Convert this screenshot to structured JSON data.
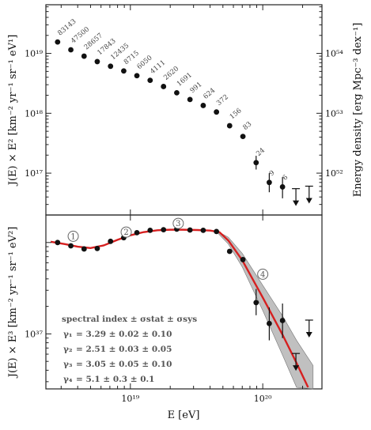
{
  "chart_data": [
    {
      "type": "scatter",
      "panel": "upper",
      "ylabel": "J(E) × E² [km⁻² yr⁻¹ sr⁻¹ eV¹]",
      "ylabel_right": "Energy density [erg Mpc⁻³ dex⁻¹]",
      "x_scale": "log",
      "y_scale": "log",
      "xlim": [
        2.3e+18,
        2.8e+20
      ],
      "ylim": [
        2e+16,
        6.5e+19
      ],
      "y_ticks": [
        {
          "value": 1e+19,
          "label": "10¹⁹"
        },
        {
          "value": 1e+18,
          "label": "10¹⁸"
        },
        {
          "value": 1e+17,
          "label": "10¹⁷"
        }
      ],
      "right_ticks": [
        {
          "value": 1e+54,
          "label": "10⁵⁴"
        },
        {
          "value": 1e+53,
          "label": "10⁵³"
        },
        {
          "value": 1e+52,
          "label": "10⁵²"
        }
      ],
      "right_scale": {
        "at_y": 1e+19,
        "value": 1e+54
      },
      "points": [
        {
          "x": 2.82e+18,
          "y": 1.55e+19,
          "count": "83143"
        },
        {
          "x": 3.55e+18,
          "y": 1.15e+19,
          "count": "47500"
        },
        {
          "x": 4.47e+18,
          "y": 9e+18,
          "count": "28657"
        },
        {
          "x": 5.62e+18,
          "y": 7.3e+18,
          "count": "17843"
        },
        {
          "x": 7.08e+18,
          "y": 6.1e+18,
          "count": "12435"
        },
        {
          "x": 8.91e+18,
          "y": 5.1e+18,
          "count": "8715"
        },
        {
          "x": 1.12e+19,
          "y": 4.25e+18,
          "count": "6050"
        },
        {
          "x": 1.41e+19,
          "y": 3.55e+18,
          "count": "4111"
        },
        {
          "x": 1.78e+19,
          "y": 2.8e+18,
          "count": "2620"
        },
        {
          "x": 2.24e+19,
          "y": 2.2e+18,
          "count": "1691"
        },
        {
          "x": 2.82e+19,
          "y": 1.7e+18,
          "count": "991"
        },
        {
          "x": 3.55e+19,
          "y": 1.35e+18,
          "count": "624"
        },
        {
          "x": 4.47e+19,
          "y": 1.05e+18,
          "count": "372"
        },
        {
          "x": 5.62e+19,
          "y": 6.2e+17,
          "count": "156"
        },
        {
          "x": 7.08e+19,
          "y": 4.1e+17,
          "count": "83"
        },
        {
          "x": 8.91e+19,
          "y": 1.5e+17,
          "count": "24",
          "err": [
            1.15e+17,
            1.95e+17
          ]
        },
        {
          "x": 1.12e+20,
          "y": 7e+16,
          "count": "9",
          "err": [
            4.8e+16,
            1e+17
          ]
        },
        {
          "x": 1.41e+20,
          "y": 5.9e+16,
          "count": "6",
          "err": [
            3.8e+16,
            8.6e+16
          ]
        }
      ],
      "upper_limits": [
        {
          "x": 1.78e+20,
          "y": 3e+16
        },
        {
          "x": 2.24e+20,
          "y": 3.3e+16
        }
      ]
    },
    {
      "type": "scatter",
      "panel": "lower",
      "xlabel": "E [eV]",
      "ylabel": "J(E) × E³ [km⁻² yr⁻¹ sr⁻¹ eV²]",
      "x_scale": "log",
      "y_scale": "log",
      "xlim": [
        2.3e+18,
        2.8e+20
      ],
      "ylim": [
        2.5e+36,
        2e+38
      ],
      "x_ticks": [
        {
          "value": 1e+19,
          "label": "10¹⁹"
        },
        {
          "value": 1e+20,
          "label": "10²⁰"
        }
      ],
      "y_ticks": [
        {
          "value": 1e+37,
          "label": "10³⁷"
        }
      ],
      "points": [
        {
          "x": 2.82e+18,
          "y": 1e+38
        },
        {
          "x": 3.55e+18,
          "y": 9.2e+37
        },
        {
          "x": 4.47e+18,
          "y": 8.5e+37
        },
        {
          "x": 5.62e+18,
          "y": 8.6e+37
        },
        {
          "x": 7.08e+18,
          "y": 1.03e+38
        },
        {
          "x": 8.91e+18,
          "y": 1.13e+38
        },
        {
          "x": 1.12e+19,
          "y": 1.28e+38
        },
        {
          "x": 1.41e+19,
          "y": 1.36e+38
        },
        {
          "x": 1.78e+19,
          "y": 1.38e+38
        },
        {
          "x": 2.24e+19,
          "y": 1.4e+38
        },
        {
          "x": 2.82e+19,
          "y": 1.37e+38
        },
        {
          "x": 3.55e+19,
          "y": 1.36e+38
        },
        {
          "x": 4.47e+19,
          "y": 1.32e+38
        },
        {
          "x": 5.62e+19,
          "y": 8e+37
        },
        {
          "x": 7.08e+19,
          "y": 6.5e+37
        },
        {
          "x": 8.91e+19,
          "y": 2.2e+37,
          "err": [
            1.6e+37,
            3.1e+37
          ]
        },
        {
          "x": 1.12e+20,
          "y": 1.3e+37,
          "err": [
            8.5e+36,
            1.95e+37
          ]
        },
        {
          "x": 1.41e+20,
          "y": 1.4e+37,
          "err": [
            9e+36,
            2.15e+37
          ]
        }
      ],
      "upper_limits": [
        {
          "x": 1.78e+20,
          "y": 4.1e+36
        },
        {
          "x": 2.24e+20,
          "y": 9.5e+36
        }
      ],
      "fit_curve": [
        {
          "x": 2.5e+18,
          "y": 1.02e+38
        },
        {
          "x": 3.2e+18,
          "y": 9.6e+37
        },
        {
          "x": 4e+18,
          "y": 9e+37
        },
        {
          "x": 5e+18,
          "y": 8.7e+37
        },
        {
          "x": 6.3e+18,
          "y": 9.3e+37
        },
        {
          "x": 8e+18,
          "y": 1.07e+38
        },
        {
          "x": 1e+19,
          "y": 1.2e+38
        },
        {
          "x": 1.26e+19,
          "y": 1.3e+38
        },
        {
          "x": 1.6e+19,
          "y": 1.36e+38
        },
        {
          "x": 2e+19,
          "y": 1.38e+38
        },
        {
          "x": 2.5e+19,
          "y": 1.38e+38
        },
        {
          "x": 3.2e+19,
          "y": 1.37e+38
        },
        {
          "x": 4e+19,
          "y": 1.35e+38
        },
        {
          "x": 4.7e+19,
          "y": 1.3e+38
        },
        {
          "x": 5.5e+19,
          "y": 1.05e+38
        },
        {
          "x": 7e+19,
          "y": 6.4e+37
        },
        {
          "x": 1e+20,
          "y": 2.5e+37
        },
        {
          "x": 1.4e+20,
          "y": 1e+37
        },
        {
          "x": 1.8e+20,
          "y": 4.8e+36
        },
        {
          "x": 2.2e+20,
          "y": 2.6e+36
        }
      ],
      "fit_color": "#d62020",
      "band_color": "#8c8c8c",
      "band": [
        {
          "x": 4.5e+19,
          "lo": 1.3e+38,
          "hi": 1.34e+38
        },
        {
          "x": 5.5e+19,
          "lo": 9.6e+37,
          "hi": 1.14e+38
        },
        {
          "x": 7e+19,
          "lo": 5.4e+37,
          "hi": 7.6e+37
        },
        {
          "x": 1e+20,
          "lo": 1.8e+37,
          "hi": 3.4e+37
        },
        {
          "x": 1.4e+20,
          "lo": 6e+36,
          "hi": 1.6e+37
        },
        {
          "x": 1.8e+20,
          "lo": 2.6e+36,
          "hi": 8.5e+36
        },
        {
          "x": 2.4e+20,
          "lo": 2.5e+36,
          "hi": 4.5e+36
        }
      ],
      "markers": [
        {
          "label": "1",
          "x": 3.7e+18,
          "y": 1.17e+38
        },
        {
          "label": "2",
          "x": 9.3e+18,
          "y": 1.3e+38
        },
        {
          "label": "3",
          "x": 2.3e+19,
          "y": 1.62e+38
        },
        {
          "label": "4",
          "x": 1e+20,
          "y": 4.5e+37
        }
      ],
      "legend": {
        "title": "spectral index ± σstat ± σsys",
        "entries": [
          {
            "symbol": "γ₁",
            "value": "= 3.29 ± 0.02 ± 0.10"
          },
          {
            "symbol": "γ₂",
            "value": "= 2.51 ± 0.03 ± 0.05"
          },
          {
            "symbol": "γ₃",
            "value": "= 3.05 ± 0.05 ± 0.10"
          },
          {
            "symbol": "γ₄",
            "value": "= 5.1 ± 0.3 ± 0.1"
          }
        ]
      }
    }
  ]
}
